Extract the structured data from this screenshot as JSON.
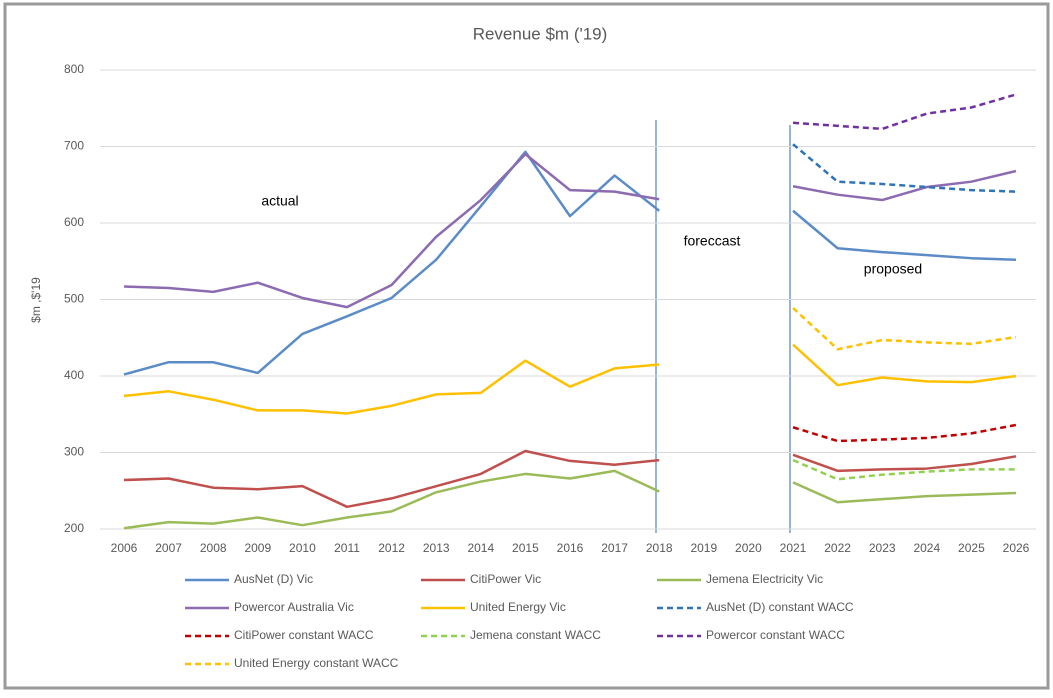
{
  "chart_data": {
    "type": "line",
    "title": "Revenue $m ('19)",
    "y_label": "$m ,$'19",
    "categories": [
      "2006",
      "2007",
      "2008",
      "2009",
      "2010",
      "2011",
      "2012",
      "2013",
      "2014",
      "2015",
      "2016",
      "2017",
      "2018",
      "2019",
      "2020",
      "2021",
      "2022",
      "2023",
      "2024",
      "2025",
      "2026"
    ],
    "ylim": [
      200,
      800
    ],
    "yticks": [
      200,
      300,
      400,
      500,
      600,
      700,
      800
    ],
    "grid": true,
    "annotations": [
      "actual",
      "foreccast",
      "proposed"
    ],
    "series": [
      {
        "name": "AusNet (D) Vic",
        "color": "#5b8cc8",
        "style": "solid",
        "values": [
          402,
          418,
          418,
          404,
          455,
          478,
          502,
          552,
          622,
          693,
          609,
          662,
          616,
          null,
          null,
          616,
          567,
          562,
          558,
          554,
          552
        ]
      },
      {
        "name": "CitiPower Vic",
        "color": "#c0504d",
        "style": "solid",
        "values": [
          264,
          266,
          254,
          252,
          256,
          229,
          240,
          256,
          272,
          302,
          289,
          284,
          290,
          null,
          null,
          297,
          276,
          278,
          279,
          285,
          295
        ]
      },
      {
        "name": "Jemena Electricity Vic",
        "color": "#9bbb59",
        "style": "solid",
        "values": [
          201,
          209,
          207,
          215,
          205,
          215,
          223,
          248,
          262,
          272,
          266,
          276,
          249,
          null,
          null,
          261,
          235,
          239,
          243,
          245,
          247
        ]
      },
      {
        "name": "Powercor Australia Vic",
        "color": "#8c6bb1",
        "style": "solid",
        "values": [
          517,
          515,
          510,
          522,
          502,
          490,
          519,
          582,
          630,
          690,
          643,
          641,
          631,
          null,
          null,
          648,
          637,
          630,
          647,
          654,
          668
        ]
      },
      {
        "name": "United Energy Vic",
        "color": "#ffc000",
        "style": "solid",
        "values": [
          374,
          380,
          369,
          355,
          355,
          351,
          361,
          376,
          378,
          420,
          386,
          410,
          415,
          null,
          null,
          441,
          388,
          398,
          393,
          392,
          400
        ]
      },
      {
        "name": "AusNet (D) constant WACC",
        "color": "#2f75b5",
        "style": "dashed",
        "values": [
          null,
          null,
          null,
          null,
          null,
          null,
          null,
          null,
          null,
          null,
          null,
          null,
          null,
          null,
          null,
          703,
          654,
          651,
          647,
          643,
          641
        ]
      },
      {
        "name": "CitiPower constant WACC",
        "color": "#c00000",
        "style": "dashed",
        "values": [
          null,
          null,
          null,
          null,
          null,
          null,
          null,
          null,
          null,
          null,
          null,
          null,
          null,
          null,
          null,
          333,
          315,
          317,
          319,
          325,
          336
        ]
      },
      {
        "name": "Jemena constant WACC",
        "color": "#92d050",
        "style": "dashed",
        "values": [
          null,
          null,
          null,
          null,
          null,
          null,
          null,
          null,
          null,
          null,
          null,
          null,
          null,
          null,
          null,
          290,
          265,
          271,
          275,
          278,
          278
        ]
      },
      {
        "name": "Powercor constant WACC",
        "color": "#7030a0",
        "style": "dashed",
        "values": [
          null,
          null,
          null,
          null,
          null,
          null,
          null,
          null,
          null,
          null,
          null,
          null,
          null,
          null,
          null,
          731,
          727,
          723,
          743,
          751,
          768
        ]
      },
      {
        "name": "United Energy constant WACC",
        "color": "#ffc000",
        "style": "dashed",
        "values": [
          null,
          null,
          null,
          null,
          null,
          null,
          null,
          null,
          null,
          null,
          null,
          null,
          null,
          null,
          null,
          489,
          435,
          447,
          444,
          442,
          451
        ]
      }
    ]
  }
}
